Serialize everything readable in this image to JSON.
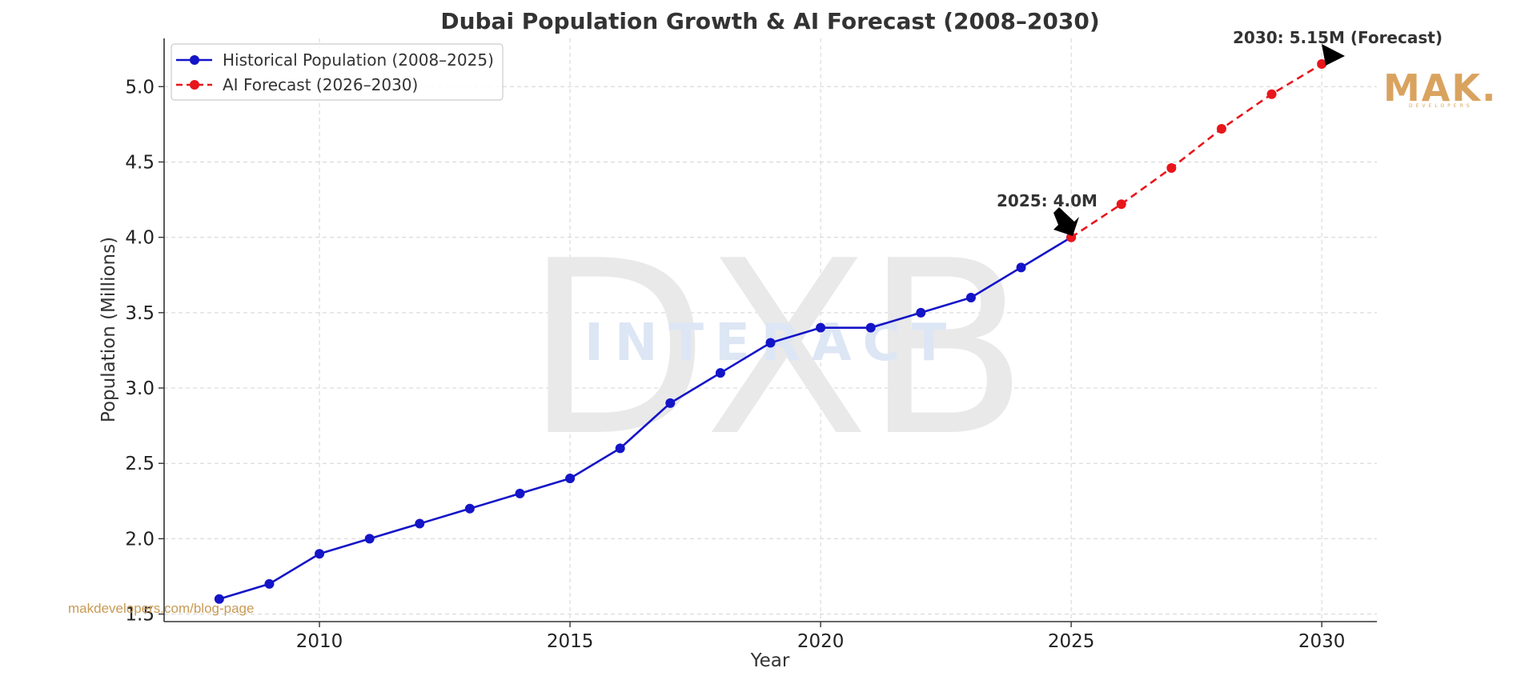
{
  "chart_data": {
    "type": "line",
    "title": "Dubai Population Growth & AI Forecast (2008–2030)",
    "xlabel": "Year",
    "ylabel": "Population (Millions)",
    "xlim": [
      2006.9,
      2031.1
    ],
    "ylim": [
      1.45,
      5.32
    ],
    "xticks": [
      2010,
      2015,
      2020,
      2025,
      2030
    ],
    "yticks": [
      1.5,
      2.0,
      2.5,
      3.0,
      3.5,
      4.0,
      4.5,
      5.0
    ],
    "ytick_labels": [
      "1.5",
      "2.0",
      "2.5",
      "3.0",
      "3.5",
      "4.0",
      "4.5",
      "5.0"
    ],
    "grid": true,
    "legend_position": "top-left",
    "series": [
      {
        "name": "Historical Population (2008–2025)",
        "color": "#1414c8",
        "style": "solid",
        "x": [
          2008,
          2009,
          2010,
          2011,
          2012,
          2013,
          2014,
          2015,
          2016,
          2017,
          2018,
          2019,
          2020,
          2021,
          2022,
          2023,
          2024,
          2025
        ],
        "y": [
          1.6,
          1.7,
          1.9,
          2.0,
          2.1,
          2.2,
          2.3,
          2.4,
          2.6,
          2.9,
          3.1,
          3.3,
          3.4,
          3.4,
          3.5,
          3.6,
          3.8,
          4.0
        ]
      },
      {
        "name": "AI Forecast (2026–2030)",
        "color": "#e8161b",
        "style": "dashed",
        "x": [
          2025,
          2026,
          2027,
          2028,
          2029,
          2030
        ],
        "y": [
          4.0,
          4.22,
          4.46,
          4.72,
          4.95,
          5.15
        ]
      }
    ],
    "annotations": [
      {
        "text": "2025: 4.0M",
        "x": 2025,
        "y": 4.0
      },
      {
        "text": "2030: 5.15M (Forecast)",
        "x": 2030,
        "y": 5.15
      }
    ]
  },
  "watermark": {
    "big": "DXB",
    "small": "INTERACT"
  },
  "logo": {
    "name": "MAK.",
    "tagline": "DEVELOPERS"
  },
  "source_url": "makdevelopers.com/blog-page"
}
